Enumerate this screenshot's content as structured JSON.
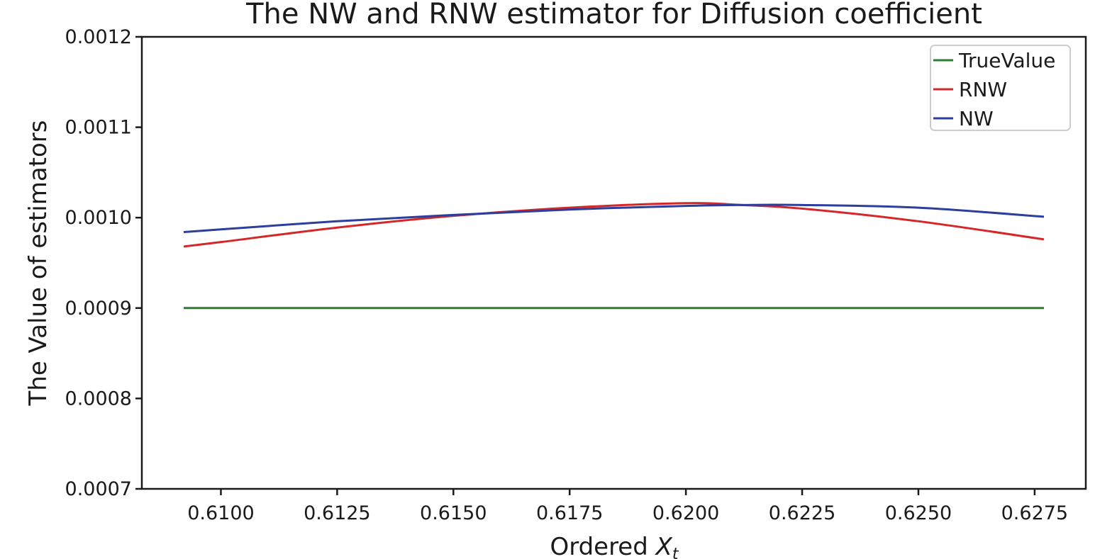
{
  "chart_data": {
    "type": "line",
    "title": "The NW and RNW estimator for Diffusion coefficient",
    "xlabel_prefix": "Ordered ",
    "xlabel_var": "X",
    "xlabel_sub": "t",
    "ylabel": "The Value of estimators",
    "xlim": [
      0.6083,
      0.6286
    ],
    "ylim": [
      0.0007,
      0.0012
    ],
    "xticks": [
      0.61,
      0.6125,
      0.615,
      0.6175,
      0.62,
      0.6225,
      0.625,
      0.6275
    ],
    "xtick_labels": [
      "0.6100",
      "0.6125",
      "0.6150",
      "0.6175",
      "0.6200",
      "0.6225",
      "0.6250",
      "0.6275"
    ],
    "yticks": [
      0.0007,
      0.0008,
      0.0009,
      0.001,
      0.0011,
      0.0012
    ],
    "ytick_labels": [
      "0.0007",
      "0.0008",
      "0.0009",
      "0.0010",
      "0.0011",
      "0.0012"
    ],
    "grid": false,
    "legend_position": "top-right",
    "series": [
      {
        "name": "TrueValue",
        "color": "#2e7d32",
        "x": [
          0.6092,
          0.6277
        ],
        "y": [
          0.0009,
          0.0009
        ]
      },
      {
        "name": "RNW",
        "color": "#d62728",
        "x": [
          0.6092,
          0.61,
          0.6125,
          0.615,
          0.6175,
          0.62,
          0.6212,
          0.6225,
          0.625,
          0.6277
        ],
        "y": [
          0.000968,
          0.000973,
          0.000989,
          0.001002,
          0.001011,
          0.001016,
          0.001014,
          0.00101,
          0.000996,
          0.000976
        ]
      },
      {
        "name": "NW",
        "color": "#2c3e9e",
        "x": [
          0.6092,
          0.61,
          0.6125,
          0.615,
          0.6175,
          0.62,
          0.6212,
          0.6225,
          0.625,
          0.6277
        ],
        "y": [
          0.000984,
          0.000987,
          0.000996,
          0.001003,
          0.001009,
          0.001013,
          0.001014,
          0.001014,
          0.001011,
          0.001001
        ]
      }
    ]
  }
}
